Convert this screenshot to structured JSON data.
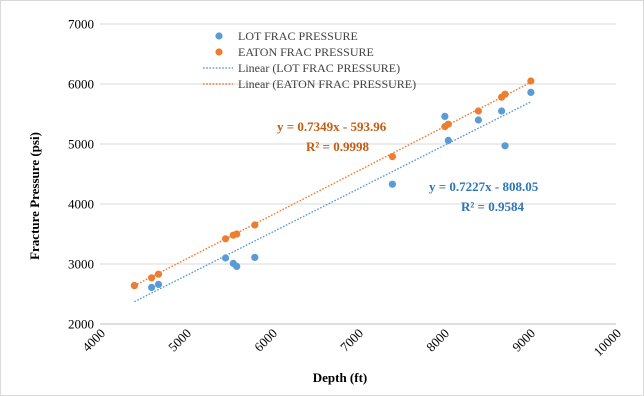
{
  "chart_data": {
    "type": "scatter",
    "title": "",
    "xlabel": "Depth (ft)",
    "ylabel": "Fracture Pressure (psi)",
    "xlim": [
      4000,
      10000
    ],
    "ylim": [
      2000,
      7000
    ],
    "x_ticks": [
      4000,
      5000,
      6000,
      7000,
      8000,
      9000,
      10000
    ],
    "y_ticks": [
      2000,
      3000,
      4000,
      5000,
      6000,
      7000
    ],
    "x_tick_labels": [
      "4000",
      "5000",
      "6000",
      "7000",
      "8000",
      "9000",
      "10000"
    ],
    "y_tick_labels": [
      "2000",
      "3000",
      "4000",
      "5000",
      "6000",
      "7000"
    ],
    "grid": "horizontal",
    "legend_position": "top-center",
    "legend": [
      "LOT FRAC PRESSURE",
      "EATON FRAC PRESSURE",
      "Linear (LOT FRAC PRESSURE)",
      "Linear (EATON FRAC PRESSURE)"
    ],
    "series": [
      {
        "name": "LOT FRAC PRESSURE",
        "color": "#5b9bd5",
        "points": [
          [
            4400,
            2640
          ],
          [
            4600,
            2610
          ],
          [
            4680,
            2660
          ],
          [
            5460,
            3100
          ],
          [
            5550,
            3010
          ],
          [
            5590,
            2960
          ],
          [
            5800,
            3110
          ],
          [
            7400,
            4330
          ],
          [
            8010,
            5460
          ],
          [
            8050,
            5060
          ],
          [
            8400,
            5400
          ],
          [
            8670,
            5550
          ],
          [
            8710,
            4970
          ],
          [
            9010,
            5860
          ]
        ]
      },
      {
        "name": "EATON FRAC PRESSURE",
        "color": "#ed7d31",
        "points": [
          [
            4400,
            2640
          ],
          [
            4600,
            2770
          ],
          [
            4680,
            2830
          ],
          [
            5460,
            3420
          ],
          [
            5550,
            3480
          ],
          [
            5590,
            3500
          ],
          [
            5800,
            3650
          ],
          [
            7400,
            4790
          ],
          [
            8010,
            5290
          ],
          [
            8050,
            5330
          ],
          [
            8400,
            5550
          ],
          [
            8670,
            5780
          ],
          [
            8710,
            5830
          ],
          [
            9010,
            6050
          ]
        ]
      }
    ],
    "trendlines": [
      {
        "name": "Linear (LOT FRAC PRESSURE)",
        "color": "#5b9bd5",
        "slope": 0.7227,
        "intercept": -808.05,
        "x_range": [
          4400,
          9010
        ],
        "equation": "y = 0.7227x - 808.05",
        "r2": "R² = 0.9584"
      },
      {
        "name": "Linear (EATON FRAC PRESSURE)",
        "color": "#ed7d31",
        "slope": 0.7349,
        "intercept": -593.96,
        "x_range": [
          4400,
          9010
        ],
        "equation": "y = 0.7349x - 593.96",
        "r2": "R² = 0.9998"
      }
    ]
  }
}
